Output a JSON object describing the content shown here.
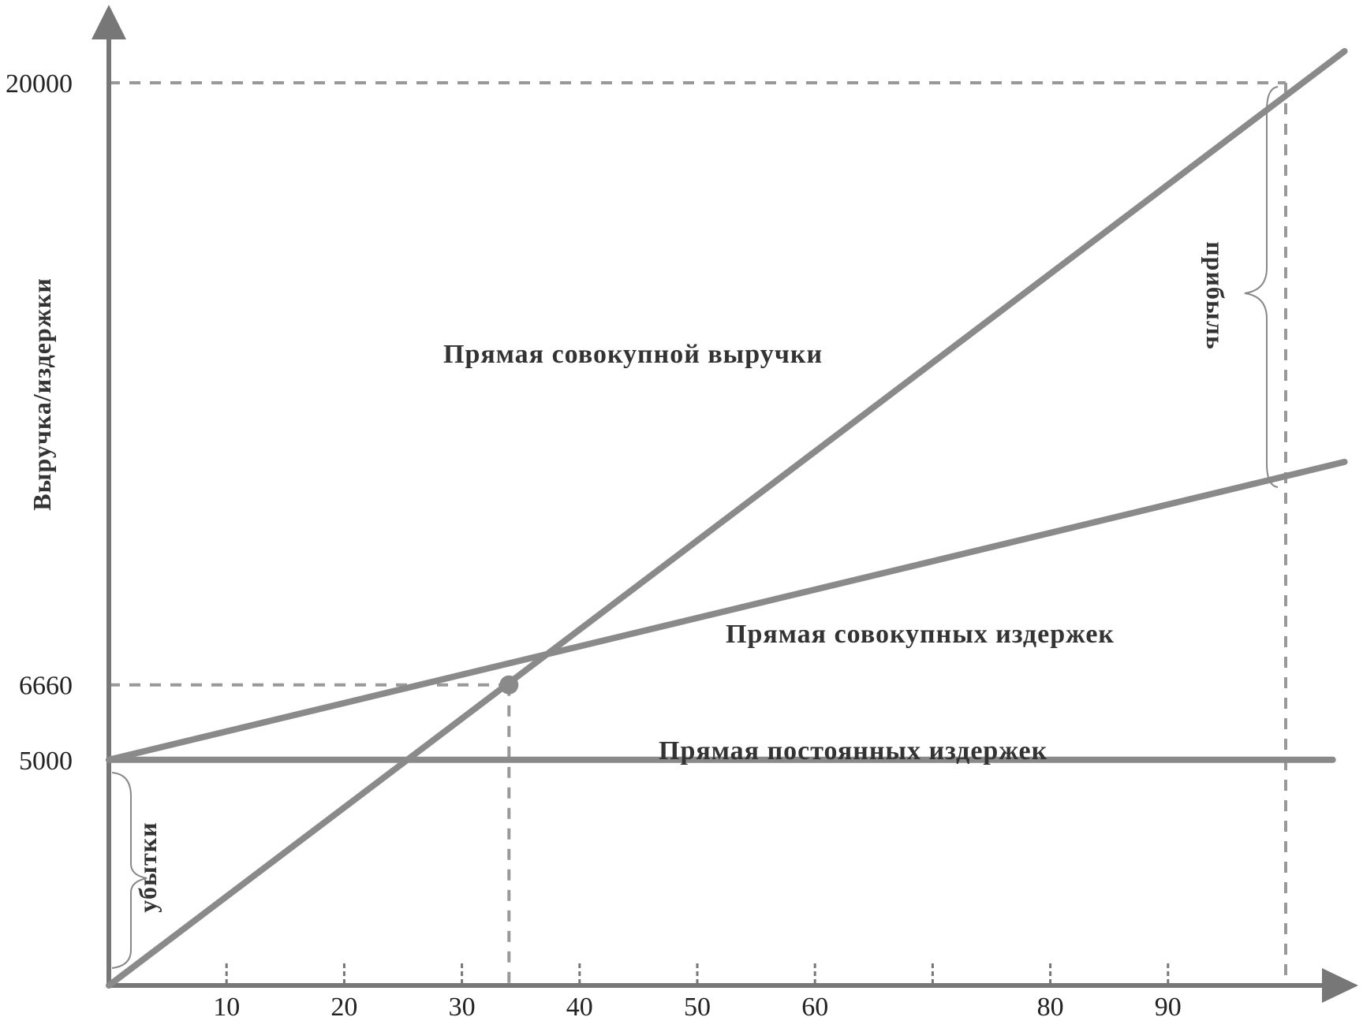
{
  "chart_data": {
    "type": "line",
    "title": "",
    "xlabel": "",
    "ylabel": "Выручка/издержки",
    "xlim": [
      0,
      105
    ],
    "ylim": [
      0,
      21500
    ],
    "x_ticks": [
      10,
      20,
      30,
      40,
      50,
      60,
      80,
      90
    ],
    "x_tick_marks": [
      10,
      20,
      30,
      40,
      50,
      60,
      70,
      80,
      90
    ],
    "y_ticks": [
      {
        "value": 20000,
        "label": "20000"
      },
      {
        "value": 6660,
        "label": "6660"
      },
      {
        "value": 5000,
        "label": "5000"
      }
    ],
    "break_even": {
      "x": 34,
      "y": 6660
    },
    "reference_x": 100,
    "grid": false,
    "series": [
      {
        "name": "Прямая совокупной выручки",
        "x": [
          0,
          105
        ],
        "y": [
          0,
          20700
        ]
      },
      {
        "name": "Прямая совокупных издержек",
        "x": [
          0,
          105
        ],
        "y": [
          5000,
          11600
        ]
      },
      {
        "name": "Прямая постоянных издержек",
        "x": [
          0,
          104
        ],
        "y": [
          5000,
          5000
        ]
      }
    ],
    "annotations": [
      {
        "text": "прибыль"
      },
      {
        "text": "убытки"
      }
    ],
    "colors": {
      "line": "#8a8a8a",
      "axis": "#777777",
      "text": "#333333"
    }
  }
}
